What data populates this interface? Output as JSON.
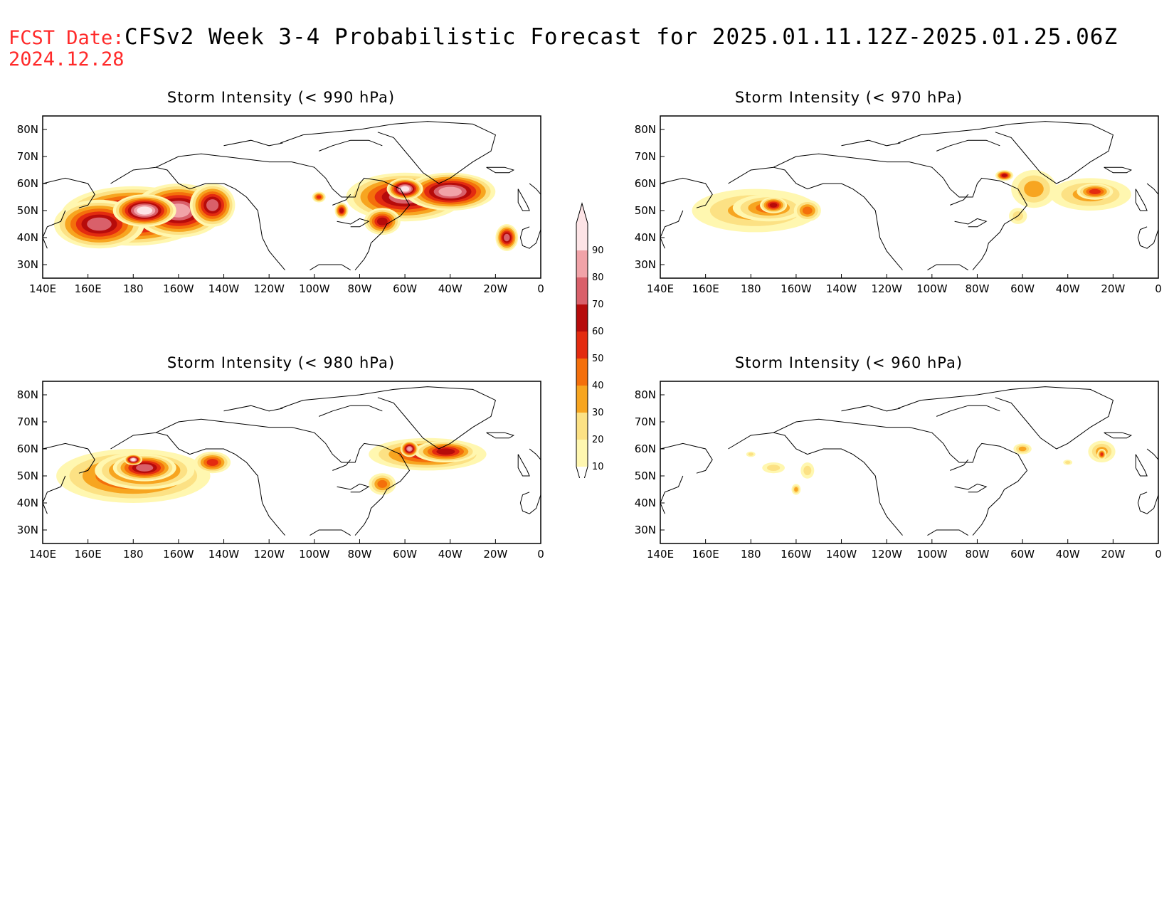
{
  "header": {
    "fcst_label": "FCST Date:",
    "fcst_date": "2024.12.28",
    "title": "CFSv2 Week 3-4 Probabilistic Forecast for 2025.01.11.12Z-2025.01.25.06Z"
  },
  "axes": {
    "lon_labels": [
      "140E",
      "160E",
      "180",
      "160W",
      "140W",
      "120W",
      "100W",
      "80W",
      "60W",
      "40W",
      "20W",
      "0"
    ],
    "lat_labels": [
      "30N",
      "40N",
      "50N",
      "60N",
      "70N",
      "80N"
    ],
    "lon_range": [
      140,
      360
    ],
    "lat_range": [
      25,
      85
    ]
  },
  "colorbar": {
    "levels": [
      10,
      20,
      30,
      40,
      50,
      60,
      70,
      80,
      90
    ],
    "labels": [
      "10",
      "20",
      "30",
      "40",
      "50",
      "60",
      "70",
      "80",
      "90"
    ],
    "colors": [
      "#fff7b0",
      "#fce184",
      "#f7a520",
      "#f46f0b",
      "#e32b10",
      "#b60b0b",
      "#d9606a",
      "#f1a3a8",
      "#fde4e6"
    ]
  },
  "panels": [
    {
      "id": "p990",
      "title": "Storm Intensity (< 990 hPa)",
      "blobs": [
        {
          "lon": 180,
          "lat": 48,
          "rlon": 32,
          "rlat": 11,
          "level": 7
        },
        {
          "lon": 165,
          "lat": 45,
          "rlon": 20,
          "rlat": 9,
          "level": 6
        },
        {
          "lon": 200,
          "lat": 50,
          "rlon": 20,
          "rlat": 10,
          "level": 7
        },
        {
          "lon": 185,
          "lat": 50,
          "rlon": 14,
          "rlat": 6,
          "level": 8
        },
        {
          "lon": 215,
          "lat": 52,
          "rlon": 10,
          "rlat": 8,
          "level": 6
        },
        {
          "lon": 300,
          "lat": 55,
          "rlon": 26,
          "rlat": 9,
          "level": 6
        },
        {
          "lon": 320,
          "lat": 57,
          "rlon": 20,
          "rlat": 7,
          "level": 7
        },
        {
          "lon": 300,
          "lat": 58,
          "rlon": 8,
          "rlat": 4,
          "level": 8
        },
        {
          "lon": 290,
          "lat": 46,
          "rlon": 8,
          "rlat": 5,
          "level": 5
        },
        {
          "lon": 345,
          "lat": 40,
          "rlon": 5,
          "rlat": 5,
          "level": 6
        },
        {
          "lon": 262,
          "lat": 55,
          "rlon": 3,
          "rlat": 2,
          "level": 4
        },
        {
          "lon": 272,
          "lat": 50,
          "rlon": 3,
          "rlat": 3,
          "level": 5
        }
      ]
    },
    {
      "id": "p970",
      "title": "Storm Intensity (< 970 hPa)",
      "blobs": [
        {
          "lon": 182,
          "lat": 50,
          "rlon": 28,
          "rlat": 8,
          "level": 2
        },
        {
          "lon": 188,
          "lat": 51,
          "rlon": 16,
          "rlat": 5,
          "level": 3
        },
        {
          "lon": 190,
          "lat": 52,
          "rlon": 6,
          "rlat": 3,
          "level": 5
        },
        {
          "lon": 205,
          "lat": 50,
          "rlon": 6,
          "rlat": 4,
          "level": 3
        },
        {
          "lon": 305,
          "lat": 58,
          "rlon": 10,
          "rlat": 7,
          "level": 2
        },
        {
          "lon": 330,
          "lat": 56,
          "rlon": 18,
          "rlat": 6,
          "level": 2
        },
        {
          "lon": 332,
          "lat": 57,
          "rlon": 8,
          "rlat": 3,
          "level": 4
        },
        {
          "lon": 292,
          "lat": 63,
          "rlon": 4,
          "rlat": 2,
          "level": 5
        },
        {
          "lon": 298,
          "lat": 48,
          "rlon": 4,
          "rlat": 3,
          "level": 1
        }
      ]
    },
    {
      "id": "p980",
      "title": "Storm Intensity (< 980 hPa)",
      "blobs": [
        {
          "lon": 180,
          "lat": 50,
          "rlon": 34,
          "rlat": 10,
          "level": 4
        },
        {
          "lon": 185,
          "lat": 52,
          "rlon": 22,
          "rlat": 7,
          "level": 5
        },
        {
          "lon": 185,
          "lat": 53,
          "rlon": 14,
          "rlat": 5,
          "level": 6
        },
        {
          "lon": 180,
          "lat": 56,
          "rlon": 4,
          "rlat": 2,
          "level": 8
        },
        {
          "lon": 215,
          "lat": 55,
          "rlon": 8,
          "rlat": 4,
          "level": 4
        },
        {
          "lon": 310,
          "lat": 58,
          "rlon": 26,
          "rlat": 6,
          "level": 4
        },
        {
          "lon": 318,
          "lat": 59,
          "rlon": 14,
          "rlat": 4,
          "level": 5
        },
        {
          "lon": 302,
          "lat": 60,
          "rlon": 4,
          "rlat": 3,
          "level": 7
        },
        {
          "lon": 290,
          "lat": 47,
          "rlon": 6,
          "rlat": 4,
          "level": 3
        }
      ]
    },
    {
      "id": "p960",
      "title": "Storm Intensity (< 960 hPa)",
      "blobs": [
        {
          "lon": 190,
          "lat": 53,
          "rlon": 5,
          "rlat": 2,
          "level": 1
        },
        {
          "lon": 205,
          "lat": 52,
          "rlon": 3,
          "rlat": 3,
          "level": 1
        },
        {
          "lon": 200,
          "lat": 45,
          "rlon": 2,
          "rlat": 2,
          "level": 2
        },
        {
          "lon": 300,
          "lat": 60,
          "rlon": 4,
          "rlat": 2,
          "level": 2
        },
        {
          "lon": 335,
          "lat": 59,
          "rlon": 6,
          "rlat": 4,
          "level": 2
        },
        {
          "lon": 335,
          "lat": 58,
          "rlon": 2,
          "rlat": 2,
          "level": 4
        },
        {
          "lon": 320,
          "lat": 55,
          "rlon": 2,
          "rlat": 1,
          "level": 1
        },
        {
          "lon": 180,
          "lat": 58,
          "rlon": 2,
          "rlat": 1,
          "level": 1
        }
      ]
    }
  ]
}
